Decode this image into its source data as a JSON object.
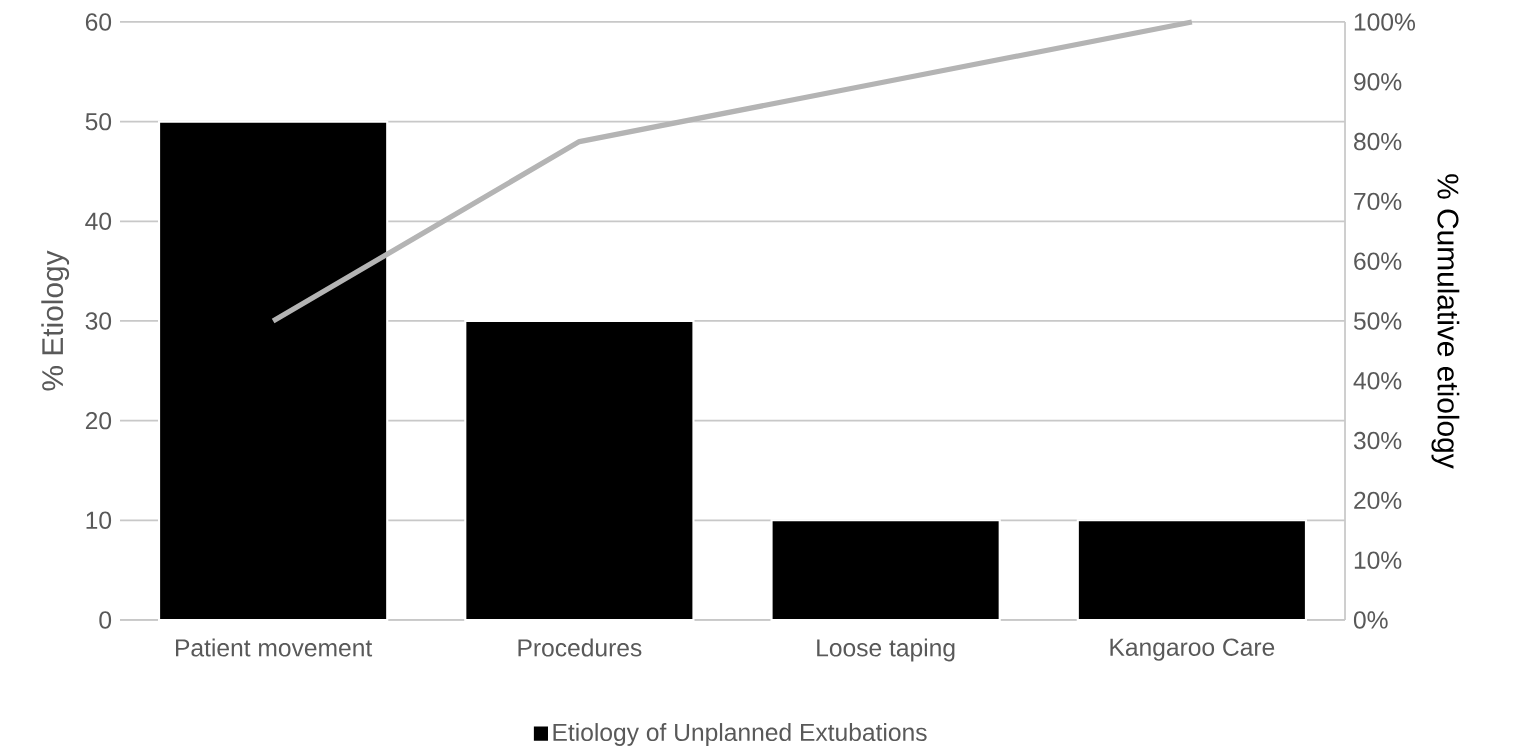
{
  "chart_data": {
    "type": "bar",
    "categories": [
      "Patient movement",
      "Procedures",
      "Loose taping",
      "Kangaroo Care"
    ],
    "series": [
      {
        "name": "Etiology of Unplanned Extubations",
        "color": "#000000",
        "values": [
          50,
          30,
          10,
          10
        ]
      },
      {
        "type": "line",
        "axis": "y2",
        "color": "#b4b4b4",
        "values": [
          50,
          80,
          90,
          100
        ]
      }
    ],
    "ylabel": "% Etiology",
    "y2label": "% Cumulative etiology",
    "ylim": [
      0,
      60
    ],
    "yticks": [
      0,
      10,
      20,
      30,
      40,
      50,
      60
    ],
    "y2lim": [
      0,
      100
    ],
    "y2ticks": [
      {
        "value": 0,
        "label": "0%"
      },
      {
        "value": 10,
        "label": "10%"
      },
      {
        "value": 20,
        "label": "20%"
      },
      {
        "value": 30,
        "label": "30%"
      },
      {
        "value": 40,
        "label": "40%"
      },
      {
        "value": 50,
        "label": "50%"
      },
      {
        "value": 60,
        "label": "60%"
      },
      {
        "value": 70,
        "label": "70%"
      },
      {
        "value": 80,
        "label": "80%"
      },
      {
        "value": 90,
        "label": "90%"
      },
      {
        "value": 100,
        "label": "100%"
      }
    ],
    "grid": "y",
    "legend": "bottom"
  }
}
